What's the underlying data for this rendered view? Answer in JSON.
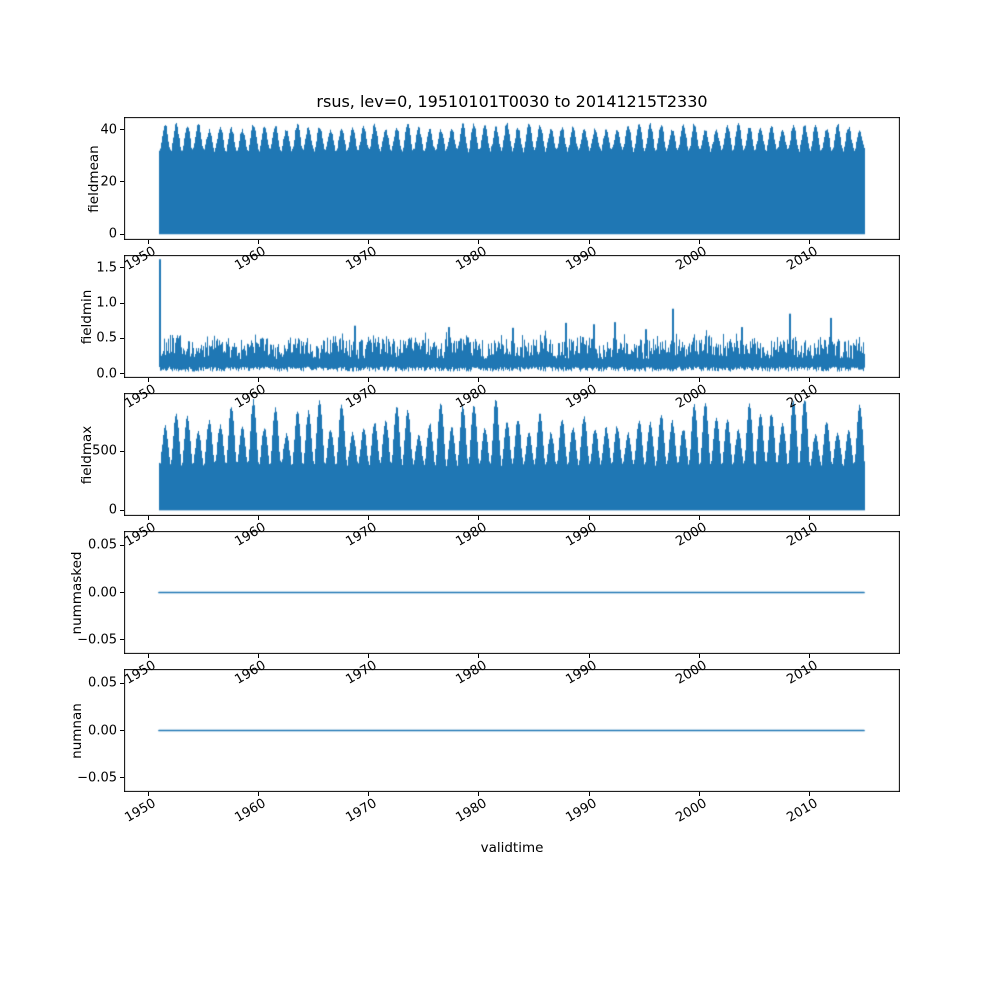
{
  "figure": {
    "title": "rsus, lev=0, 19510101T0030 to 20141215T2330",
    "xlabel": "validtime",
    "background": "#ffffff",
    "accent": "#1f77b4",
    "frame_color": "#000000"
  },
  "x_axis": {
    "lim": [
      1947.8,
      2018.2
    ],
    "ticks": [
      [
        1950,
        "1950"
      ],
      [
        1960,
        "1960"
      ],
      [
        1970,
        "1970"
      ],
      [
        1980,
        "1980"
      ],
      [
        1990,
        "1990"
      ],
      [
        2000,
        "2000"
      ],
      [
        2010,
        "2010"
      ]
    ],
    "tick_rotation_deg": 30,
    "data_start": 1951.0,
    "data_end": 2014.96
  },
  "chart_data": [
    {
      "name": "fieldmean",
      "type": "area",
      "ylabel": "fieldmean",
      "ylim": [
        -2.2,
        44.8
      ],
      "yticks": [
        [
          40,
          "40"
        ],
        [
          20,
          "20"
        ],
        [
          0,
          "0"
        ]
      ],
      "series": {
        "kind": "diurnal-filled",
        "base": 0,
        "valley": 32,
        "peak_min": 39.5,
        "peak_max": 42.5,
        "jitter": 1.4,
        "sharpness": 0.9,
        "summary": "Sub-daily field mean fills 0 to ~40; annual cycle with summer peaks 39.5-42.5 and winter envelope ~32"
      }
    },
    {
      "name": "fieldmin",
      "type": "line",
      "ylabel": "fieldmin",
      "ylim": [
        -0.06,
        1.68
      ],
      "yticks": [
        [
          1.5,
          "1.5"
        ],
        [
          1.0,
          "1.0"
        ],
        [
          0.5,
          "0.5"
        ],
        [
          0.0,
          "0.0"
        ]
      ],
      "series": {
        "kind": "noisy-band",
        "band_low": 0.03,
        "band_high": 0.52,
        "spikes": [
          [
            1951.05,
            1.62
          ],
          [
            1968.8,
            0.68
          ],
          [
            1977.3,
            0.66
          ],
          [
            1983.1,
            0.65
          ],
          [
            1987.9,
            0.72
          ],
          [
            1990.4,
            0.7
          ],
          [
            1992.3,
            0.73
          ],
          [
            1995.2,
            0.63
          ],
          [
            1997.6,
            0.92
          ],
          [
            2003.9,
            0.66
          ],
          [
            2008.2,
            0.85
          ],
          [
            2011.9,
            0.79
          ]
        ],
        "summary": "Field minimum noisy between ~0.05 and ~0.6; isolated spikes, largest 1.62 at the 1951 start"
      }
    },
    {
      "name": "fieldmax",
      "type": "area",
      "ylabel": "fieldmax",
      "ylim": [
        -48,
        995
      ],
      "yticks": [
        [
          500,
          "500"
        ],
        [
          0,
          "0"
        ]
      ],
      "series": {
        "kind": "diurnal-filled",
        "base": 0,
        "valley": 385,
        "peak_min": 640,
        "peak_max": 945,
        "jitter": 28,
        "sharpness": 0.8,
        "summary": "Field maximum fills 0 to annual peaks varying ~640-945 with winter envelope ~390"
      }
    },
    {
      "name": "nummasked",
      "type": "line",
      "ylabel": "nummasked",
      "ylim": [
        -0.065,
        0.065
      ],
      "yticks": [
        [
          0.05,
          "0.05"
        ],
        [
          0,
          "0.00"
        ],
        [
          -0.05,
          "−0.05"
        ]
      ],
      "series": {
        "kind": "constant",
        "value": 0.0,
        "summary": "Number of masked points is 0 over the whole period"
      }
    },
    {
      "name": "numnan",
      "type": "line",
      "ylabel": "numnan",
      "ylim": [
        -0.065,
        0.065
      ],
      "yticks": [
        [
          0.05,
          "0.05"
        ],
        [
          0,
          "0.00"
        ],
        [
          -0.05,
          "−0.05"
        ]
      ],
      "series": {
        "kind": "constant",
        "value": 0.0,
        "summary": "Number of NaN points is 0 over the whole period"
      }
    }
  ]
}
